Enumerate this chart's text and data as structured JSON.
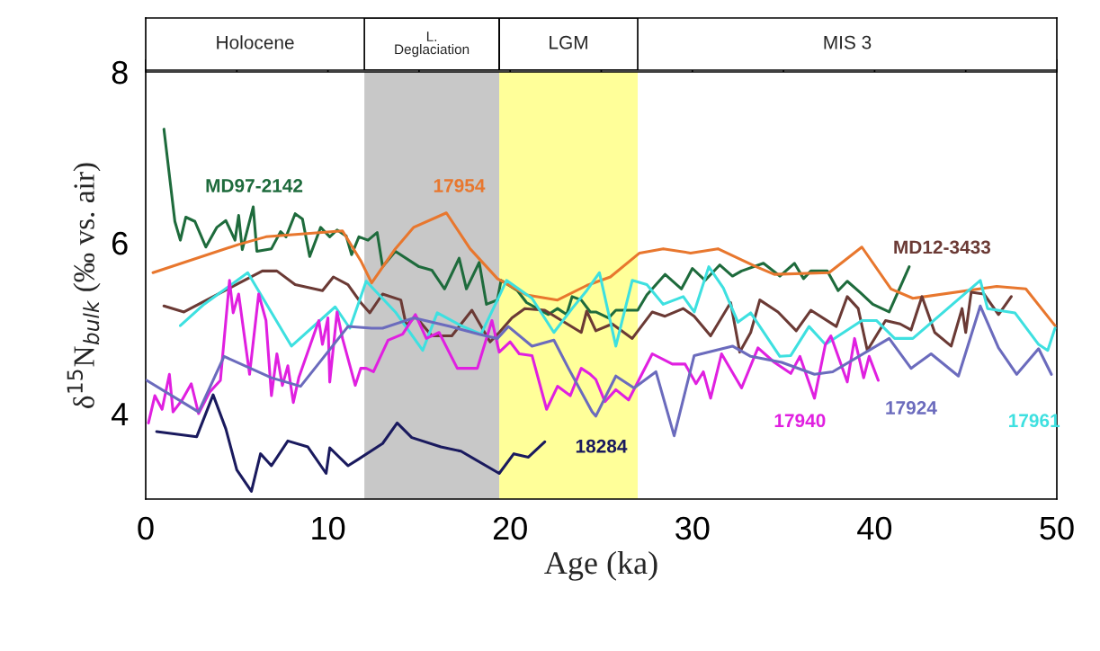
{
  "chart_data": {
    "type": "line",
    "xlabel": "Age (ka)",
    "ylabel": "δ$^{15}$N$_{bulk}$ (‰ vs. air)",
    "xlim": [
      0,
      50
    ],
    "ylim": [
      3,
      8
    ],
    "xticks": [
      0,
      {
        "value": 5,
        "label": null
      },
      10,
      {
        "value": 15,
        "label": null
      },
      20,
      {
        "value": 25,
        "label": null
      },
      30,
      {
        "value": 35,
        "label": null
      },
      40,
      {
        "value": 45,
        "label": null
      },
      50
    ],
    "yticks": [
      4,
      6,
      8
    ],
    "annotations": [
      "Holocene",
      "MIS 3"
    ],
    "grid": false,
    "legend": false,
    "marker": "none",
    "line_style": "solid",
    "bands": [
      {
        "axis": "x",
        "from": 12.0,
        "to": 19.4,
        "label": "L.\nDeglaciation",
        "color": "#c8c8c8"
      },
      {
        "axis": "x",
        "from": 19.4,
        "to": 27.0,
        "label": "LGM",
        "color": "#ffff99"
      }
    ],
    "series": [
      {
        "name": "MD97-2142",
        "color": "#1e6b3c",
        "x": [
          1.0,
          1.6,
          1.9,
          2.2,
          2.7,
          3.3,
          3.9,
          4.4,
          4.9,
          5.1,
          5.3,
          5.9,
          6.1,
          6.9,
          7.4,
          7.7,
          8.2,
          8.6,
          9.0,
          9.6,
          10.1,
          10.5,
          11.0,
          11.3,
          11.7,
          12.2,
          12.7,
          13.0,
          13.7,
          15.0,
          15.7,
          16.4,
          17.2,
          17.6,
          18.3,
          18.7,
          19.3,
          19.5,
          20.4,
          20.9,
          22.1,
          22.6,
          23.1,
          23.4,
          23.9,
          24.4,
          24.7,
          25.4,
          25.8,
          27.0,
          27.5,
          28.5,
          29.4,
          30.0,
          30.7,
          31.5,
          32.2,
          32.7,
          33.9,
          34.8,
          35.6,
          36.1,
          36.5,
          37.4,
          38.0,
          38.5,
          39.2,
          39.9,
          40.8,
          41.9
        ],
        "values": [
          7.33,
          6.25,
          6.03,
          6.3,
          6.25,
          5.95,
          6.18,
          6.26,
          6.03,
          6.32,
          5.92,
          6.42,
          5.9,
          5.93,
          6.13,
          6.07,
          6.34,
          6.28,
          5.84,
          6.18,
          6.07,
          6.15,
          6.08,
          5.86,
          6.07,
          6.03,
          6.12,
          5.72,
          5.9,
          5.72,
          5.68,
          5.46,
          5.82,
          5.46,
          5.77,
          5.28,
          5.33,
          5.56,
          5.44,
          5.3,
          5.16,
          5.23,
          5.16,
          5.37,
          5.33,
          5.19,
          5.19,
          5.12,
          5.21,
          5.21,
          5.39,
          5.63,
          5.46,
          5.7,
          5.56,
          5.74,
          5.61,
          5.67,
          5.76,
          5.61,
          5.76,
          5.58,
          5.67,
          5.67,
          5.44,
          5.55,
          5.42,
          5.28,
          5.19,
          5.72
        ]
      },
      {
        "name": "17954",
        "color": "#e8772e",
        "x": [
          0.4,
          5.1,
          6.6,
          10.8,
          11.8,
          12.4,
          13.7,
          14.7,
          16.5,
          17.8,
          19.3,
          20.9,
          22.6,
          24.2,
          25.5,
          27.1,
          28.4,
          29.9,
          31.4,
          33.5,
          34.5,
          37.5,
          39.3,
          40.9,
          42.1,
          46.7,
          48.3,
          49.9
        ],
        "values": [
          5.65,
          5.98,
          6.07,
          6.14,
          5.79,
          5.53,
          5.93,
          6.18,
          6.35,
          5.93,
          5.58,
          5.39,
          5.33,
          5.5,
          5.6,
          5.88,
          5.93,
          5.88,
          5.93,
          5.72,
          5.63,
          5.65,
          5.95,
          5.46,
          5.35,
          5.49,
          5.46,
          5.03
        ]
      },
      {
        "name": "MD12-3433",
        "color": "#6b3a35",
        "x": [
          1.0,
          2.1,
          4.6,
          6.4,
          7.2,
          8.2,
          9.7,
          10.3,
          11.1,
          11.8,
          12.3,
          13.0,
          14.0,
          14.3,
          14.8,
          15.7,
          16.8,
          17.9,
          18.9,
          19.4,
          20.1,
          20.8,
          21.9,
          23.9,
          24.2,
          24.7,
          25.6,
          26.7,
          27.8,
          28.5,
          29.5,
          30.1,
          31.0,
          32.1,
          32.6,
          33.2,
          33.7,
          34.7,
          35.7,
          36.5,
          37.9,
          38.5,
          39.1,
          39.6,
          40.6,
          41.4,
          42.0,
          42.6,
          43.3,
          44.2,
          44.8,
          45.0,
          45.3,
          46.0,
          46.8,
          47.5
        ],
        "values": [
          5.26,
          5.19,
          5.47,
          5.67,
          5.67,
          5.51,
          5.44,
          5.6,
          5.51,
          5.3,
          5.18,
          5.4,
          5.33,
          5.03,
          5.14,
          4.91,
          4.91,
          5.21,
          4.84,
          4.95,
          5.12,
          5.23,
          5.21,
          4.95,
          5.2,
          4.97,
          5.05,
          4.88,
          5.19,
          5.14,
          5.23,
          5.14,
          4.91,
          5.3,
          4.72,
          4.95,
          5.33,
          5.19,
          4.97,
          5.21,
          5.02,
          5.37,
          5.23,
          4.74,
          5.09,
          5.05,
          4.98,
          5.37,
          4.95,
          4.79,
          5.23,
          4.95,
          5.42,
          5.4,
          5.16,
          5.37
        ]
      },
      {
        "name": "17961",
        "color": "#3ee0e0",
        "x": [
          1.9,
          3.2,
          5.6,
          8.0,
          10.4,
          11.2,
          12.1,
          13.7,
          15.2,
          16.0,
          17.3,
          18.4,
          19.3,
          19.8,
          21.2,
          22.4,
          23.4,
          24.2,
          24.9,
          25.8,
          26.7,
          27.5,
          28.4,
          29.5,
          30.1,
          30.9,
          31.7,
          32.5,
          33.2,
          34.8,
          35.4,
          36.4,
          37.3,
          39.3,
          40.1,
          41.1,
          42.1,
          45.8,
          46.2,
          47.7,
          49.0,
          49.5,
          49.9
        ],
        "values": [
          5.03,
          5.28,
          5.65,
          4.79,
          5.25,
          5.0,
          5.55,
          5.19,
          4.74,
          5.18,
          5.03,
          4.93,
          5.33,
          5.56,
          5.35,
          4.95,
          5.23,
          5.44,
          5.65,
          4.79,
          5.56,
          5.51,
          5.28,
          5.37,
          5.19,
          5.72,
          5.47,
          5.07,
          5.18,
          4.67,
          4.68,
          5.02,
          4.81,
          5.09,
          5.09,
          4.88,
          4.88,
          5.56,
          5.23,
          5.18,
          4.81,
          4.74,
          5.0
        ]
      },
      {
        "name": "17940",
        "color": "#e020e0",
        "x": [
          0.15,
          0.5,
          0.9,
          1.3,
          1.5,
          2.0,
          2.5,
          2.9,
          3.5,
          4.1,
          4.6,
          4.8,
          5.1,
          5.7,
          6.2,
          6.6,
          6.9,
          7.2,
          7.5,
          7.8,
          8.1,
          8.4,
          9.5,
          9.7,
          10.0,
          10.1,
          10.5,
          10.8,
          11.5,
          11.8,
          12.1,
          12.5,
          13.3,
          14.1,
          14.8,
          15.4,
          16.1,
          17.1,
          18.2,
          19.0,
          19.4,
          20.0,
          20.5,
          21.2,
          22.0,
          22.6,
          23.3,
          23.9,
          24.4,
          24.7,
          25.2,
          25.8,
          26.5,
          27.8,
          28.9,
          29.6,
          30.2,
          30.6,
          31.0,
          31.6,
          32.7,
          33.6,
          34.5,
          35.4,
          35.9,
          36.7,
          37.3,
          37.6,
          38.5,
          38.9,
          39.4,
          39.7,
          40.2
        ],
        "values": [
          3.89,
          4.21,
          4.05,
          4.46,
          4.02,
          4.16,
          4.35,
          4.0,
          4.25,
          4.39,
          5.56,
          5.18,
          5.4,
          4.46,
          5.4,
          5.09,
          4.21,
          4.7,
          4.33,
          4.56,
          4.13,
          4.42,
          5.09,
          4.81,
          5.12,
          4.37,
          5.19,
          4.88,
          4.33,
          4.53,
          4.53,
          4.49,
          4.86,
          4.93,
          5.16,
          4.88,
          4.95,
          4.53,
          4.53,
          5.09,
          4.72,
          4.84,
          4.7,
          4.68,
          4.05,
          4.32,
          4.21,
          4.53,
          4.46,
          4.4,
          4.14,
          4.28,
          4.16,
          4.7,
          4.58,
          4.58,
          4.35,
          4.49,
          4.18,
          4.7,
          4.3,
          4.77,
          4.6,
          4.47,
          4.67,
          4.18,
          4.81,
          4.91,
          4.37,
          4.88,
          4.42,
          4.67,
          4.39
        ]
      },
      {
        "name": "17924",
        "color": "#6b6bbd",
        "x": [
          0.05,
          2.9,
          4.3,
          6.9,
          8.5,
          11.1,
          12.4,
          13.0,
          14.7,
          16.7,
          18.3,
          19.3,
          19.9,
          21.2,
          22.4,
          23.2,
          24.5,
          24.7,
          25.8,
          26.8,
          28.0,
          29.0,
          30.1,
          32.2,
          33.2,
          34.9,
          36.7,
          37.7,
          40.8,
          42.0,
          43.1,
          44.6,
          45.8,
          46.8,
          47.8,
          49.0,
          49.7
        ],
        "values": [
          4.39,
          4.02,
          4.67,
          4.42,
          4.32,
          5.02,
          5.0,
          5.0,
          5.12,
          5.02,
          4.93,
          4.88,
          5.02,
          4.79,
          4.86,
          4.53,
          4.02,
          3.97,
          4.44,
          4.3,
          4.49,
          3.74,
          4.68,
          4.79,
          4.67,
          4.6,
          4.46,
          4.49,
          4.88,
          4.53,
          4.7,
          4.44,
          5.26,
          4.77,
          4.46,
          4.76,
          4.46
        ]
      },
      {
        "name": "18284",
        "color": "#1a1a5e",
        "x": [
          0.6,
          2.8,
          3.7,
          4.4,
          5.0,
          5.8,
          6.3,
          6.9,
          7.8,
          8.9,
          9.9,
          10.1,
          11.1,
          11.7,
          13.0,
          13.8,
          14.6,
          16.2,
          17.3,
          19.4,
          20.2,
          21.0,
          21.9
        ],
        "values": [
          3.79,
          3.73,
          4.22,
          3.82,
          3.34,
          3.09,
          3.53,
          3.39,
          3.68,
          3.61,
          3.3,
          3.6,
          3.39,
          3.47,
          3.65,
          3.89,
          3.72,
          3.61,
          3.56,
          3.3,
          3.53,
          3.49,
          3.67
        ]
      }
    ]
  }
}
